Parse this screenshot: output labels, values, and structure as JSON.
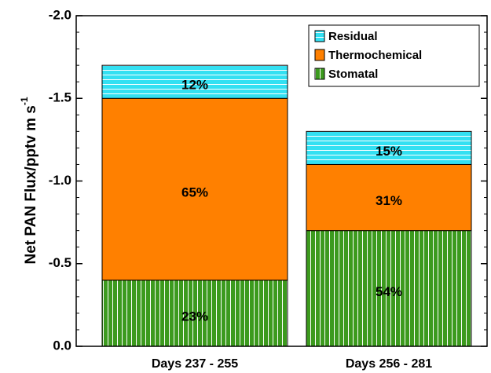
{
  "chart_data": {
    "type": "stacked_bar",
    "ylabel": "Net PAN Flux/pptv m s",
    "ylabel_superscript": "-1",
    "categories": [
      "Days 237 - 255",
      "Days 256 - 281"
    ],
    "series": [
      {
        "name": "Stomatal",
        "color": "#3c9a1e",
        "pattern": "vertical",
        "values": [
          -0.4,
          -0.7
        ],
        "percent_labels": [
          "23%",
          "54%"
        ]
      },
      {
        "name": "Thermochemical",
        "color": "#ff8000",
        "pattern": "none",
        "values": [
          -1.1,
          -0.4
        ],
        "percent_labels": [
          "65%",
          "31%"
        ]
      },
      {
        "name": "Residual",
        "color": "#33e0f2",
        "pattern": "horizontal",
        "values": [
          -0.2,
          -0.2
        ],
        "percent_labels": [
          "12%",
          "15%"
        ]
      }
    ],
    "ylim": [
      0,
      -2.0
    ],
    "yticks": [
      {
        "value": 0,
        "label": "0.0"
      },
      -0.5,
      {
        "value": -1.0,
        "label": "-1.0"
      },
      -1.5,
      {
        "value": -2.0,
        "label": "-2.0"
      }
    ],
    "yminorticks": [
      -0.1,
      -0.2,
      -0.3,
      -0.4,
      -0.6,
      -0.7,
      -0.8,
      -0.9,
      -1.1,
      -1.2,
      -1.3,
      -1.4,
      -1.6,
      -1.7,
      -1.8,
      -1.9
    ],
    "legend": "upper right",
    "grid": false
  }
}
